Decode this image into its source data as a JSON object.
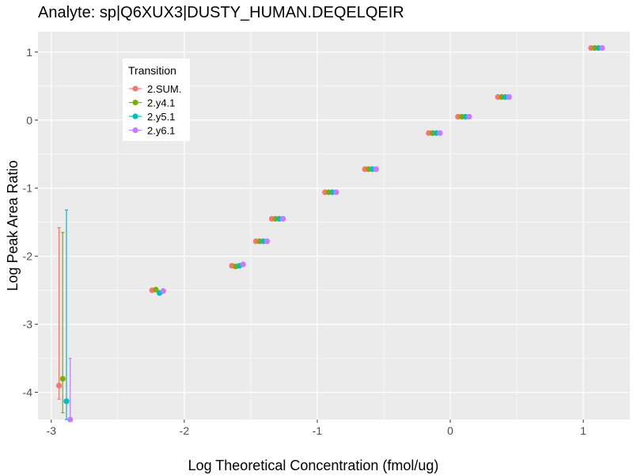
{
  "chart_data": {
    "type": "scatter",
    "title": "Analyte: sp|Q6XUX3|DUSTY_HUMAN.DEQELQEIR",
    "xlabel": "Log Theoretical Concentration (fmol/ug)",
    "ylabel": "Log Peak Area Ratio",
    "xlim": [
      -3.1,
      1.35
    ],
    "ylim": [
      -4.4,
      1.3
    ],
    "x_ticks": [
      -3,
      -2,
      -1,
      0,
      1
    ],
    "x_tick_labels": [
      "-3",
      "-2",
      "-1",
      "0",
      "1"
    ],
    "y_ticks": [
      -4,
      -3,
      -2,
      -1,
      0,
      1
    ],
    "y_tick_labels": [
      "-4",
      "-3",
      "-2",
      "-1",
      "0",
      "1"
    ],
    "grid": true,
    "legend": {
      "title": "Transition",
      "position": "top-left"
    },
    "x": [
      -2.9,
      -2.2,
      -1.6,
      -1.42,
      -1.3,
      -0.9,
      -0.6,
      -0.12,
      0.1,
      0.4,
      1.1
    ],
    "series": [
      {
        "name": "2.SUM.",
        "color": "#F8766D",
        "values": [
          -3.9,
          -2.5,
          -2.14,
          -1.78,
          -1.45,
          -1.06,
          -0.72,
          -0.19,
          0.05,
          0.34,
          1.06
        ],
        "error_low": [
          -4.1,
          null,
          null,
          null,
          null,
          null,
          null,
          null,
          null,
          null,
          null
        ],
        "error_high": [
          -1.58,
          null,
          null,
          null,
          null,
          null,
          null,
          null,
          null,
          null,
          null
        ]
      },
      {
        "name": "2.y4.1",
        "color": "#7CAE00",
        "values": [
          -3.8,
          -2.49,
          -2.15,
          -1.78,
          -1.45,
          -1.06,
          -0.72,
          -0.19,
          0.05,
          0.34,
          1.06
        ],
        "error_low": [
          -4.3,
          null,
          null,
          null,
          null,
          null,
          null,
          null,
          null,
          null,
          null
        ],
        "error_high": [
          -1.65,
          null,
          null,
          null,
          null,
          null,
          null,
          null,
          null,
          null,
          null
        ]
      },
      {
        "name": "2.y5.1",
        "color": "#00BFC4",
        "values": [
          -4.13,
          -2.54,
          -2.14,
          -1.78,
          -1.45,
          -1.06,
          -0.72,
          -0.19,
          0.05,
          0.34,
          1.06
        ],
        "error_low": [
          -4.4,
          null,
          null,
          null,
          null,
          null,
          null,
          null,
          null,
          null,
          null
        ],
        "error_high": [
          -1.32,
          null,
          null,
          null,
          null,
          null,
          null,
          null,
          null,
          null,
          null
        ]
      },
      {
        "name": "2.y6.1",
        "color": "#C77CFF",
        "values": [
          -4.4,
          -2.51,
          -2.12,
          -1.78,
          -1.45,
          -1.06,
          -0.72,
          -0.19,
          0.05,
          0.34,
          1.06
        ],
        "error_low": [
          -4.4,
          null,
          null,
          null,
          null,
          null,
          null,
          null,
          null,
          null,
          null
        ],
        "error_high": [
          -3.5,
          null,
          null,
          null,
          null,
          null,
          null,
          null,
          null,
          null,
          null
        ]
      }
    ]
  }
}
